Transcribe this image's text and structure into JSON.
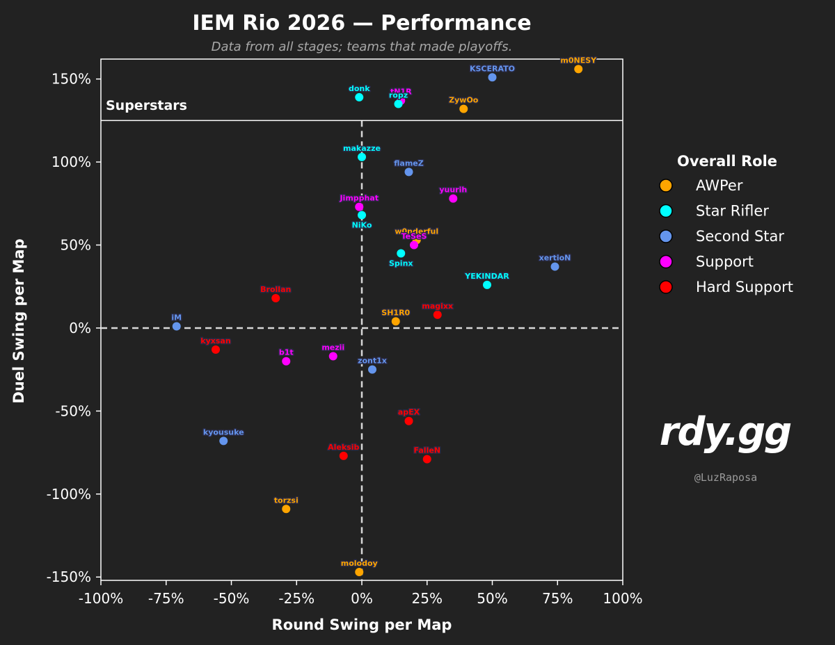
{
  "chart_data": {
    "type": "scatter",
    "title": "IEM Rio 2026 — Performance",
    "subtitle": "Data from all stages; teams that made playoffs.",
    "xlabel": "Round Swing per Map",
    "ylabel": "Duel Swing per Map",
    "xlim": [
      -100,
      100
    ],
    "ylim": [
      -152,
      162
    ],
    "xticks": [
      -100,
      -75,
      -50,
      -25,
      0,
      25,
      50,
      75,
      100
    ],
    "yticks": [
      -150,
      -100,
      -50,
      0,
      50,
      100,
      150
    ],
    "tick_format": "percent",
    "zero_lines": true,
    "grid": false,
    "region": {
      "label": "Superstars",
      "y_threshold": 125
    },
    "legend": {
      "title": "Overall Role",
      "placement": "right"
    },
    "roles": [
      {
        "name": "AWPer",
        "color": "#ffa500"
      },
      {
        "name": "Star Rifler",
        "color": "#00ffff"
      },
      {
        "name": "Second Star",
        "color": "#6495ed"
      },
      {
        "name": "Support",
        "color": "#ff00ff"
      },
      {
        "name": "Hard Support",
        "color": "#ff0000"
      }
    ],
    "points": [
      {
        "name": "m0NESY",
        "role": "AWPer",
        "x": 83,
        "y": 156
      },
      {
        "name": "KSCERATO",
        "role": "Second Star",
        "x": 50,
        "y": 151
      },
      {
        "name": "tN1R",
        "role": "Support",
        "x": 15,
        "y": 137
      },
      {
        "name": "donk",
        "role": "Star Rifler",
        "x": -1,
        "y": 139
      },
      {
        "name": "ropz",
        "role": "Star Rifler",
        "x": 14,
        "y": 135
      },
      {
        "name": "ZywOo",
        "role": "AWPer",
        "x": 39,
        "y": 132
      },
      {
        "name": "makazze",
        "role": "Star Rifler",
        "x": 0,
        "y": 103
      },
      {
        "name": "flameZ",
        "role": "Second Star",
        "x": 18,
        "y": 94
      },
      {
        "name": "yuurih",
        "role": "Support",
        "x": 35,
        "y": 78
      },
      {
        "name": "Jimpphat",
        "role": "Support",
        "x": -1,
        "y": 73
      },
      {
        "name": "NiKo",
        "role": "Star Rifler",
        "x": 0,
        "y": 68
      },
      {
        "name": "w0nderful",
        "role": "AWPer",
        "x": 21,
        "y": 53
      },
      {
        "name": "TeSeS",
        "role": "Support",
        "x": 20,
        "y": 50
      },
      {
        "name": "Spinx",
        "role": "Star Rifler",
        "x": 15,
        "y": 45
      },
      {
        "name": "xertioN",
        "role": "Second Star",
        "x": 74,
        "y": 37
      },
      {
        "name": "YEKINDAR",
        "role": "Star Rifler",
        "x": 48,
        "y": 26
      },
      {
        "name": "Brollan",
        "role": "Hard Support",
        "x": -33,
        "y": 18
      },
      {
        "name": "magixx",
        "role": "Hard Support",
        "x": 29,
        "y": 8
      },
      {
        "name": "SH1R0",
        "role": "AWPer",
        "x": 13,
        "y": 4
      },
      {
        "name": "iM",
        "role": "Second Star",
        "x": -71,
        "y": 1
      },
      {
        "name": "kyxsan",
        "role": "Hard Support",
        "x": -56,
        "y": -13
      },
      {
        "name": "b1t",
        "role": "Support",
        "x": -29,
        "y": -20
      },
      {
        "name": "mezii",
        "role": "Support",
        "x": -11,
        "y": -17
      },
      {
        "name": "zont1x",
        "role": "Second Star",
        "x": 4,
        "y": -25
      },
      {
        "name": "apEX",
        "role": "Hard Support",
        "x": 18,
        "y": -56
      },
      {
        "name": "kyousuke",
        "role": "Second Star",
        "x": -53,
        "y": -68
      },
      {
        "name": "Aleksib",
        "role": "Hard Support",
        "x": -7,
        "y": -77
      },
      {
        "name": "FalleN",
        "role": "Hard Support",
        "x": 25,
        "y": -79
      },
      {
        "name": "torzsi",
        "role": "AWPer",
        "x": -29,
        "y": -109
      },
      {
        "name": "molodoy",
        "role": "AWPer",
        "x": -1,
        "y": -147
      }
    ]
  },
  "branding": {
    "logo_text": "rdy.gg",
    "handle": "@LuzRaposa"
  }
}
